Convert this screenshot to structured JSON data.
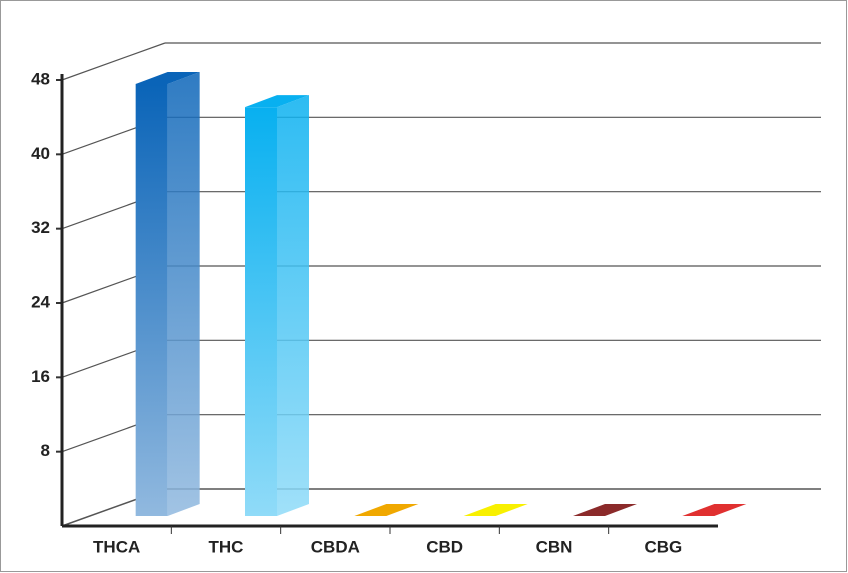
{
  "chart_data": {
    "type": "bar3d",
    "categories": [
      "THCA",
      "THC",
      "CBDA",
      "CBD",
      "CBN",
      "CBG"
    ],
    "values": [
      46.5,
      44,
      0,
      0,
      0,
      0
    ],
    "colors": [
      "#0a64b8",
      "#08b0f0",
      "#f0a800",
      "#f8f000",
      "#8b2a2a",
      "#e03030"
    ],
    "ylim": [
      0,
      48
    ],
    "yticks": [
      8,
      16,
      24,
      32,
      40,
      48
    ],
    "grid": true
  }
}
